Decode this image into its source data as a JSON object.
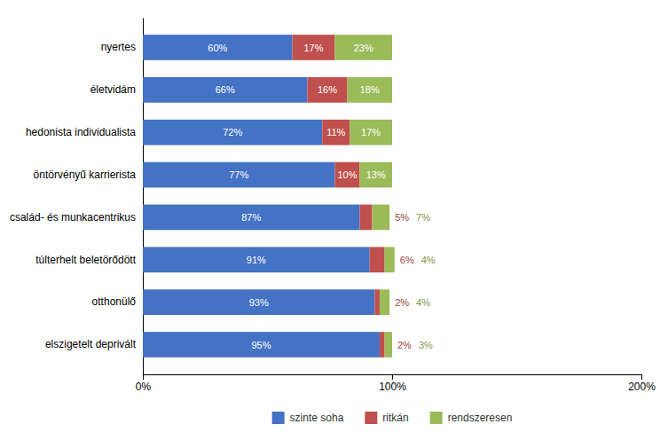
{
  "chart_data": {
    "type": "bar",
    "orientation": "horizontal",
    "stacked": true,
    "categories": [
      "nyertes",
      "életvidám",
      "hedonista individualista",
      "öntörvényű karrierista",
      "család- és munkacentrikus",
      "túlterhelt beletörődött",
      "otthonülő",
      "elszigetelt deprivált"
    ],
    "series": [
      {
        "name": "szinte soha",
        "color": "#4472C4",
        "values": [
          60,
          66,
          72,
          77,
          87,
          91,
          93,
          95
        ],
        "value_labels": [
          "60%",
          "66%",
          "72%",
          "77%",
          "87%",
          "91%",
          "93%",
          "95%"
        ]
      },
      {
        "name": "ritkán",
        "color": "#C0504D",
        "values": [
          17,
          16,
          11,
          10,
          5,
          6,
          2,
          2
        ],
        "value_labels": [
          "17%",
          "16%",
          "11%",
          "10%",
          "5%",
          "6%",
          "2%",
          "2%"
        ]
      },
      {
        "name": "rendszeresen",
        "color": "#9BBB59",
        "values": [
          23,
          18,
          17,
          13,
          7,
          4,
          4,
          3
        ],
        "value_labels": [
          "23%",
          "18%",
          "17%",
          "13%",
          "7%",
          "4%",
          "4%",
          "3%"
        ]
      }
    ],
    "xlim": [
      0,
      200
    ],
    "xticks": [
      {
        "value": 0,
        "label": "0%"
      },
      {
        "value": 100,
        "label": "100%"
      },
      {
        "value": 200,
        "label": "200%"
      }
    ],
    "data_labels": true,
    "legend": "bottom",
    "grid": false
  }
}
